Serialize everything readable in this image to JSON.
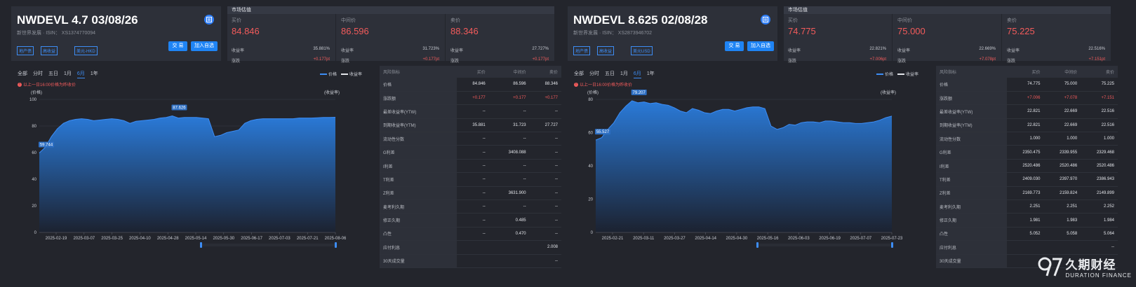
{
  "bonds": [
    {
      "title": "NWDEVL 4.7 03/08/26",
      "subtitle": "新世界发展 · ISIN： XS1374770094",
      "tags": [
        "地产债",
        "高收益",
        "美元-HKD"
      ],
      "buttons": {
        "trade": "交 易",
        "watch": "加入自选"
      },
      "market": {
        "header": "市场估值",
        "columns": [
          {
            "label": "买价",
            "price": "84.846",
            "yield_label": "收益率",
            "yield": "35.881%",
            "change_label": "涨跌",
            "change": "+0.177pt"
          },
          {
            "label": "中间价",
            "price": "86.596",
            "yield_label": "收益率",
            "yield": "31.723%",
            "change_label": "涨跌",
            "change": "+0.177pt"
          },
          {
            "label": "卖价",
            "price": "88.346",
            "yield_label": "收益率",
            "yield": "27.727%",
            "change_label": "涨跌",
            "change": "+0.177pt"
          }
        ]
      },
      "tabs": [
        "全部",
        "分时",
        "五日",
        "1月",
        "6月",
        "1年"
      ],
      "active_tab": "6月",
      "legend": [
        "价格",
        "收益率"
      ],
      "note": "以上一日16:00价格为昨收价",
      "risk": {
        "headers": [
          "风险指标",
          "买价",
          "中间价",
          "卖价"
        ],
        "rows": [
          [
            "价格",
            "84.846",
            "86.596",
            "88.346"
          ],
          [
            "涨跌额",
            "+0.177",
            "+0.177",
            "+0.177"
          ],
          [
            "最差收益率(YTW)",
            "--",
            "--",
            "--"
          ],
          [
            "到期收益率(YTM)",
            "35.881",
            "31.723",
            "27.727"
          ],
          [
            "流动性分数",
            "--",
            "--",
            "--"
          ],
          [
            "G利差",
            "--",
            "3408.088",
            "--"
          ],
          [
            "I利差",
            "--",
            "--",
            "--"
          ],
          [
            "T利差",
            "--",
            "--",
            "--"
          ],
          [
            "Z利差",
            "--",
            "3631.900",
            "--"
          ],
          [
            "麦考利久期",
            "--",
            "--",
            "--"
          ],
          [
            "修正久期",
            "--",
            "0.485",
            "--"
          ],
          [
            "凸性",
            "--",
            "0.470",
            "--"
          ],
          [
            "应付利息",
            "",
            "",
            "2.008"
          ],
          [
            "30天成交量",
            "",
            "",
            "--"
          ]
        ],
        "red_rows": [
          1
        ]
      }
    },
    {
      "title": "NWDEVL 8.625 02/08/28",
      "subtitle": "新世界发展 · ISIN： XS2873946702",
      "tags": [
        "地产债",
        "高收益",
        "美元USD"
      ],
      "buttons": {
        "trade": "交 易",
        "watch": "加入自选"
      },
      "market": {
        "header": "市场估值",
        "columns": [
          {
            "label": "买价",
            "price": "74.775",
            "yield_label": "收益率",
            "yield": "22.821%",
            "change_label": "涨跌",
            "change": "+7.006pt"
          },
          {
            "label": "中间价",
            "price": "75.000",
            "yield_label": "收益率",
            "yield": "22.669%",
            "change_label": "涨跌",
            "change": "+7.078pt"
          },
          {
            "label": "卖价",
            "price": "75.225",
            "yield_label": "收益率",
            "yield": "22.516%",
            "change_label": "涨跌",
            "change": "+7.151pt"
          }
        ]
      },
      "tabs": [
        "全部",
        "分时",
        "五日",
        "1月",
        "6月",
        "1年"
      ],
      "active_tab": "6月",
      "legend": [
        "价格",
        "收益率"
      ],
      "note": "以上一日16:00价格为昨收价",
      "risk": {
        "headers": [
          "风险指标",
          "买价",
          "中间价",
          "卖价"
        ],
        "rows": [
          [
            "价格",
            "74.775",
            "75.000",
            "75.225"
          ],
          [
            "涨跌额",
            "+7.006",
            "+7.078",
            "+7.151"
          ],
          [
            "最差收益率(YTW)",
            "22.821",
            "22.669",
            "22.516"
          ],
          [
            "到期收益率(YTM)",
            "22.821",
            "22.669",
            "22.516"
          ],
          [
            "流动性分数",
            "1.000",
            "1.000",
            "1.000"
          ],
          [
            "G利差",
            "2350.475",
            "2339.955",
            "2329.468"
          ],
          [
            "I利差",
            "2520.486",
            "2520.486",
            "2520.486"
          ],
          [
            "T利差",
            "2409.030",
            "2397.970",
            "2386.943"
          ],
          [
            "Z利差",
            "2169.773",
            "2159.824",
            "2149.899"
          ],
          [
            "麦考利久期",
            "2.251",
            "2.251",
            "2.252"
          ],
          [
            "修正久期",
            "1.981",
            "1.983",
            "1.984"
          ],
          [
            "凸性",
            "5.052",
            "5.058",
            "5.064"
          ],
          [
            "应付利息",
            "",
            "",
            "--"
          ],
          [
            "30天成交量",
            "",
            "",
            "--"
          ]
        ],
        "red_rows": [
          1
        ]
      }
    }
  ],
  "chart_data": [
    {
      "type": "area",
      "xlabel": "",
      "ylabel": "(价格)",
      "y2label": "(收益率)",
      "ylim": [
        0,
        100
      ],
      "yticks": [
        0,
        20,
        40,
        60,
        80,
        100
      ],
      "xticks": [
        "2025-02-19",
        "2025-03-07",
        "2025-03-25",
        "2025-04-10",
        "2025-04-28",
        "2025-05-14",
        "2025-05-30",
        "2025-06-17",
        "2025-07-03",
        "2025-07-21",
        "2025-08-06"
      ],
      "series": [
        {
          "name": "价格",
          "values": [
            59.744,
            64,
            72,
            78,
            82,
            84,
            85,
            85.5,
            85,
            84,
            84.5,
            85,
            85.5,
            85,
            84,
            82,
            83.5,
            84,
            84.5,
            85,
            86,
            86.5,
            87.626,
            86,
            86.5,
            86.5,
            86.5,
            86,
            85.5,
            72,
            73,
            75,
            76,
            77,
            82,
            84,
            85,
            85.5,
            85.5,
            85.5,
            85.5,
            85.5,
            85.5,
            86,
            86,
            86,
            86.2,
            86.4,
            86.5,
            86.6
          ]
        }
      ],
      "annotations": [
        "59.744",
        "87.626"
      ]
    },
    {
      "type": "area",
      "xlabel": "",
      "ylabel": "(价格)",
      "y2label": "(收益率)",
      "ylim": [
        0,
        80
      ],
      "yticks": [
        0,
        20,
        40,
        60,
        80
      ],
      "xticks": [
        "2025-02-21",
        "2025-03-11",
        "2025-03-27",
        "2025-04-14",
        "2025-04-30",
        "2025-05-16",
        "2025-06-03",
        "2025-06-19",
        "2025-07-07",
        "2025-07-23"
      ],
      "series": [
        {
          "name": "价格",
          "values": [
            55.527,
            57,
            62,
            66,
            72,
            76,
            79.207,
            78,
            78.5,
            77.5,
            78,
            77,
            76.5,
            75,
            73,
            72,
            74.5,
            73.5,
            72,
            71.5,
            73,
            74,
            74,
            73,
            74,
            75,
            75.5,
            75.5,
            74.5,
            64,
            62,
            63,
            65,
            64.5,
            66,
            66.5,
            66.5,
            66,
            67,
            67,
            66.5,
            66,
            66,
            65.5,
            65.5,
            66,
            66.5,
            67.5,
            69,
            70
          ]
        }
      ],
      "annotations": [
        "55.527",
        "79.207"
      ]
    }
  ],
  "brand": {
    "cn": "久期财经",
    "en": "DURATION FINANCE"
  },
  "colors": {
    "accent": "#1f84f5",
    "up": "#f25b5b",
    "area": "#2a7ad8"
  }
}
